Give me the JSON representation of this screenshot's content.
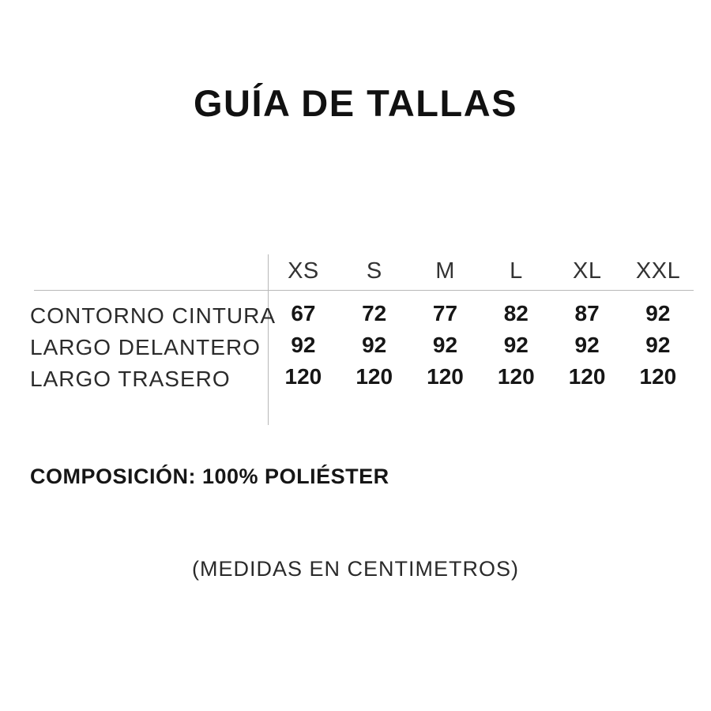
{
  "page": {
    "title": "GUÍA DE TALLAS",
    "composition": "COMPOSICIÓN: 100% POLIÉSTER",
    "units_note": "(MEDIDAS EN CENTIMETROS)"
  },
  "size_table": {
    "columns": [
      "XS",
      "S",
      "M",
      "L",
      "XL",
      "XXL"
    ],
    "rows": [
      {
        "label": "CONTORNO CINTURA",
        "values": [
          "67",
          "72",
          "77",
          "82",
          "87",
          "92"
        ]
      },
      {
        "label": "LARGO DELANTERO",
        "values": [
          "92",
          "92",
          "92",
          "92",
          "92",
          "92"
        ]
      },
      {
        "label": "LARGO TRASERO",
        "values": [
          "120",
          "120",
          "120",
          "120",
          "120",
          "120"
        ]
      }
    ]
  },
  "colors": {
    "text": "#1c1c1c",
    "divider": "#b8b8b8",
    "background": "#ffffff"
  }
}
